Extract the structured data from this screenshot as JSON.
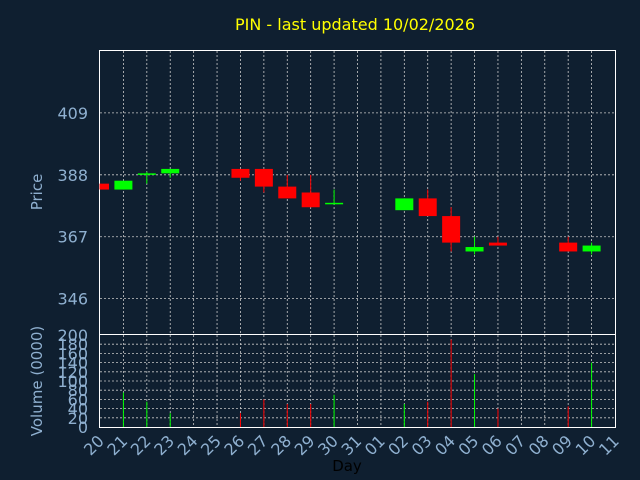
{
  "chart_data": {
    "type": "candlestick",
    "title": "PIN - last updated 10/02/2026",
    "xlabel": "Day",
    "ylabel_price": "Price",
    "ylabel_volume": "Volume (0000)",
    "x_ticks": [
      "20",
      "21",
      "22",
      "23",
      "24",
      "25",
      "26",
      "27",
      "28",
      "29",
      "30",
      "31",
      "01",
      "02",
      "03",
      "04",
      "05",
      "06",
      "07",
      "08",
      "09",
      "10",
      "11"
    ],
    "price_ticks": [
      346,
      367,
      388,
      409
    ],
    "price_range": [
      334,
      430
    ],
    "volume_ticks": [
      0,
      20,
      40,
      60,
      80,
      100,
      120,
      140,
      160,
      180,
      200
    ],
    "volume_range": [
      0,
      200
    ],
    "up_color": "#00ff00",
    "down_color": "#ff0000",
    "candles": [
      {
        "day": "20",
        "open": 385,
        "high": 385,
        "low": 383,
        "close": 383,
        "volume": 0
      },
      {
        "day": "21",
        "open": 383,
        "high": 386,
        "low": 383,
        "close": 386,
        "volume": 75
      },
      {
        "day": "22",
        "open": 388,
        "high": 389,
        "low": 385,
        "close": 388.5,
        "volume": 55
      },
      {
        "day": "23",
        "open": 388.5,
        "high": 390,
        "low": 387,
        "close": 390,
        "volume": 30
      },
      {
        "day": "26",
        "open": 390,
        "high": 390,
        "low": 386,
        "close": 387,
        "volume": 30
      },
      {
        "day": "27",
        "open": 390,
        "high": 390,
        "low": 382,
        "close": 384,
        "volume": 60
      },
      {
        "day": "28",
        "open": 384,
        "high": 388,
        "low": 380,
        "close": 380,
        "volume": 50
      },
      {
        "day": "29",
        "open": 382,
        "high": 388,
        "low": 377,
        "close": 377,
        "volume": 50
      },
      {
        "day": "30",
        "open": 378,
        "high": 383,
        "low": 378,
        "close": 378.5,
        "volume": 70
      },
      {
        "day": "02",
        "open": 376,
        "high": 380,
        "low": 376,
        "close": 380,
        "volume": 50
      },
      {
        "day": "03",
        "open": 380,
        "high": 383,
        "low": 374,
        "close": 374,
        "volume": 55
      },
      {
        "day": "04",
        "open": 374,
        "high": 377,
        "low": 362,
        "close": 365,
        "volume": 190
      },
      {
        "day": "05",
        "open": 362,
        "high": 367,
        "low": 361,
        "close": 363.5,
        "volume": 115
      },
      {
        "day": "06",
        "open": 365,
        "high": 367,
        "low": 364,
        "close": 364,
        "volume": 40
      },
      {
        "day": "09",
        "open": 365,
        "high": 367,
        "low": 362,
        "close": 362,
        "volume": 45
      },
      {
        "day": "10",
        "open": 362,
        "high": 365,
        "low": 361,
        "close": 364,
        "volume": 140
      }
    ]
  }
}
